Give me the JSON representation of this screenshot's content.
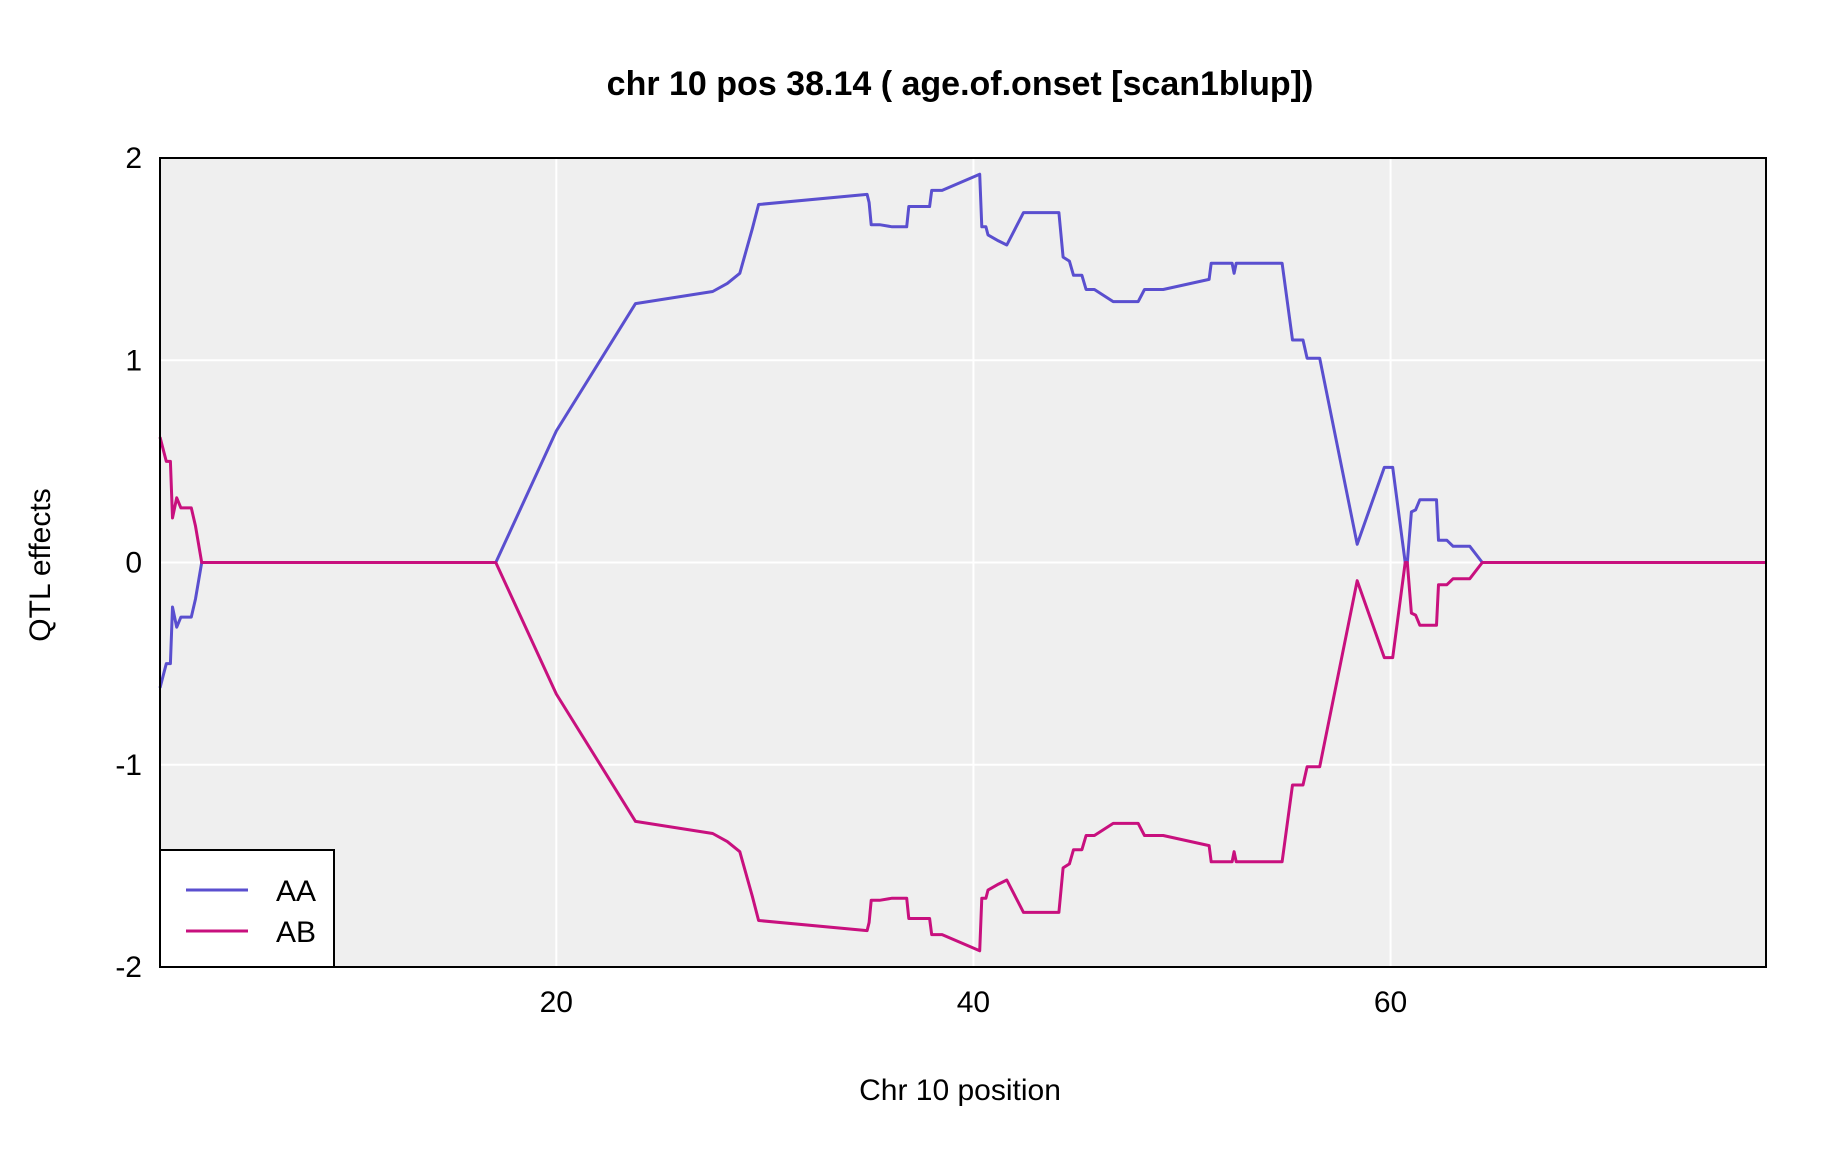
{
  "chart_data": {
    "type": "line",
    "title": "chr 10 pos 38.14 ( age.of.onset  [scan1blup])",
    "xlabel": "Chr 10 position",
    "ylabel": "QTL effects",
    "xlim": [
      1.0,
      78.0
    ],
    "ylim": [
      -2,
      2
    ],
    "xticks": [
      20,
      40,
      60
    ],
    "yticks": [
      -2,
      -1,
      0,
      1,
      2
    ],
    "grid": true,
    "legend_position": "bottom-left",
    "colors": {
      "AA": "#5a4fcf",
      "AB": "#c8107e",
      "panel": "#efefef"
    },
    "series": [
      {
        "name": "AA",
        "x": [
          1.0,
          1.3,
          1.5,
          1.6,
          1.8,
          2.0,
          2.2,
          2.5,
          2.7,
          3.0,
          3.5,
          17.1,
          20.0,
          23.8,
          27.5,
          28.2,
          28.8,
          29.4,
          29.7,
          34.9,
          35.0,
          35.1,
          35.5,
          36.1,
          36.8,
          36.9,
          37.9,
          38.0,
          38.5,
          40.3,
          40.4,
          40.6,
          40.7,
          41.2,
          41.6,
          42.4,
          44.1,
          44.3,
          44.6,
          44.8,
          45.2,
          45.4,
          45.8,
          46.7,
          47.9,
          48.2,
          49.1,
          51.3,
          51.4,
          52.4,
          52.5,
          52.6,
          52.8,
          53.5,
          53.8,
          54.8,
          55.3,
          55.8,
          56.0,
          56.6,
          58.4,
          59.7,
          60.1,
          60.7,
          60.8,
          61.0,
          61.2,
          61.4,
          61.6,
          62.2,
          62.3,
          62.7,
          63.0,
          63.3,
          63.8,
          64.4,
          78.0
        ],
        "values": [
          -0.62,
          -0.5,
          -0.5,
          -0.22,
          -0.32,
          -0.27,
          -0.27,
          -0.27,
          -0.18,
          0.0,
          0.0,
          0.0,
          0.65,
          1.28,
          1.34,
          1.38,
          1.43,
          1.65,
          1.77,
          1.82,
          1.78,
          1.67,
          1.67,
          1.66,
          1.66,
          1.76,
          1.76,
          1.84,
          1.84,
          1.92,
          1.66,
          1.66,
          1.62,
          1.59,
          1.57,
          1.73,
          1.73,
          1.51,
          1.49,
          1.42,
          1.42,
          1.35,
          1.35,
          1.29,
          1.29,
          1.35,
          1.35,
          1.4,
          1.48,
          1.48,
          1.43,
          1.48,
          1.48,
          1.48,
          1.48,
          1.48,
          1.1,
          1.1,
          1.01,
          1.01,
          0.09,
          0.47,
          0.47,
          0.0,
          0.0,
          0.25,
          0.26,
          0.31,
          0.31,
          0.31,
          0.11,
          0.11,
          0.08,
          0.08,
          0.08,
          0.0,
          0.0
        ]
      },
      {
        "name": "AB",
        "x": [
          1.0,
          1.3,
          1.5,
          1.6,
          1.8,
          2.0,
          2.2,
          2.5,
          2.7,
          3.0,
          3.5,
          17.1,
          20.0,
          23.8,
          27.5,
          28.2,
          28.8,
          29.4,
          29.7,
          34.9,
          35.0,
          35.1,
          35.5,
          36.1,
          36.8,
          36.9,
          37.9,
          38.0,
          38.5,
          40.3,
          40.4,
          40.6,
          40.7,
          41.2,
          41.6,
          42.4,
          44.1,
          44.3,
          44.6,
          44.8,
          45.2,
          45.4,
          45.8,
          46.7,
          47.9,
          48.2,
          49.1,
          51.3,
          51.4,
          52.4,
          52.5,
          52.6,
          52.8,
          53.5,
          53.8,
          54.8,
          55.3,
          55.8,
          56.0,
          56.6,
          58.4,
          59.7,
          60.1,
          60.7,
          60.8,
          61.0,
          61.2,
          61.4,
          61.6,
          62.2,
          62.3,
          62.7,
          63.0,
          63.3,
          63.8,
          64.4,
          78.0
        ],
        "values": [
          0.62,
          0.5,
          0.5,
          0.22,
          0.32,
          0.27,
          0.27,
          0.27,
          0.18,
          0.0,
          0.0,
          0.0,
          -0.65,
          -1.28,
          -1.34,
          -1.38,
          -1.43,
          -1.65,
          -1.77,
          -1.82,
          -1.78,
          -1.67,
          -1.67,
          -1.66,
          -1.66,
          -1.76,
          -1.76,
          -1.84,
          -1.84,
          -1.92,
          -1.66,
          -1.66,
          -1.62,
          -1.59,
          -1.57,
          -1.73,
          -1.73,
          -1.51,
          -1.49,
          -1.42,
          -1.42,
          -1.35,
          -1.35,
          -1.29,
          -1.29,
          -1.35,
          -1.35,
          -1.4,
          -1.48,
          -1.48,
          -1.43,
          -1.48,
          -1.48,
          -1.48,
          -1.48,
          -1.48,
          -1.1,
          -1.1,
          -1.01,
          -1.01,
          -0.09,
          -0.47,
          -0.47,
          0.0,
          0.0,
          -0.25,
          -0.26,
          -0.31,
          -0.31,
          -0.31,
          -0.11,
          -0.11,
          -0.08,
          -0.08,
          -0.08,
          0.0,
          0.0
        ]
      }
    ]
  }
}
